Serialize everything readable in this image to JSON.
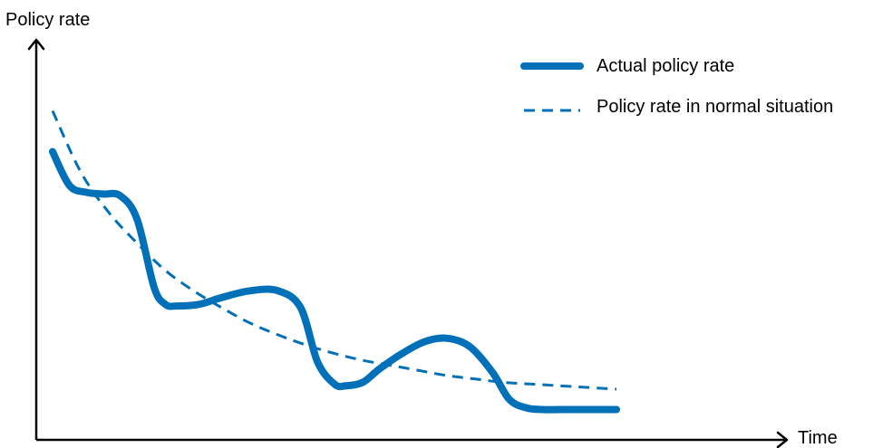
{
  "chart_data": {
    "type": "line",
    "title": "",
    "xlabel": "Time",
    "ylabel": "Policy rate",
    "xlim": [
      0,
      100
    ],
    "ylim": [
      0,
      100
    ],
    "grid": false,
    "axis_ticks": false,
    "legend_position": "top-right",
    "colors": {
      "series": "#0070b8",
      "axis": "#000000"
    },
    "series": [
      {
        "name": "Actual policy rate",
        "style": "solid",
        "x": [
          0,
          3,
          6,
          9,
          12,
          15,
          18,
          20,
          22,
          26,
          30,
          35,
          40,
          44,
          47,
          50,
          52,
          55,
          58,
          62,
          66,
          70,
          74,
          78,
          81,
          84,
          87,
          90,
          94,
          100
        ],
        "y": [
          78,
          68,
          66,
          65.5,
          65,
          58,
          38,
          33,
          32.5,
          33,
          35,
          37,
          37,
          32,
          16,
          9.5,
          9,
          10,
          14,
          18.5,
          22,
          23,
          20.5,
          13,
          5,
          2.5,
          2,
          2,
          2,
          2
        ]
      },
      {
        "name": "Policy rate in normal situation",
        "style": "dashed",
        "x": [
          0,
          5,
          10,
          15,
          20,
          25,
          30,
          35,
          40,
          45,
          50,
          55,
          60,
          65,
          70,
          75,
          80,
          85,
          90,
          95,
          100
        ],
        "y": [
          90,
          72,
          60,
          51,
          43,
          37,
          32,
          27.5,
          24,
          21,
          18.5,
          16.5,
          15,
          13.5,
          12,
          11,
          10,
          9.5,
          9,
          8.5,
          8
        ]
      }
    ]
  }
}
